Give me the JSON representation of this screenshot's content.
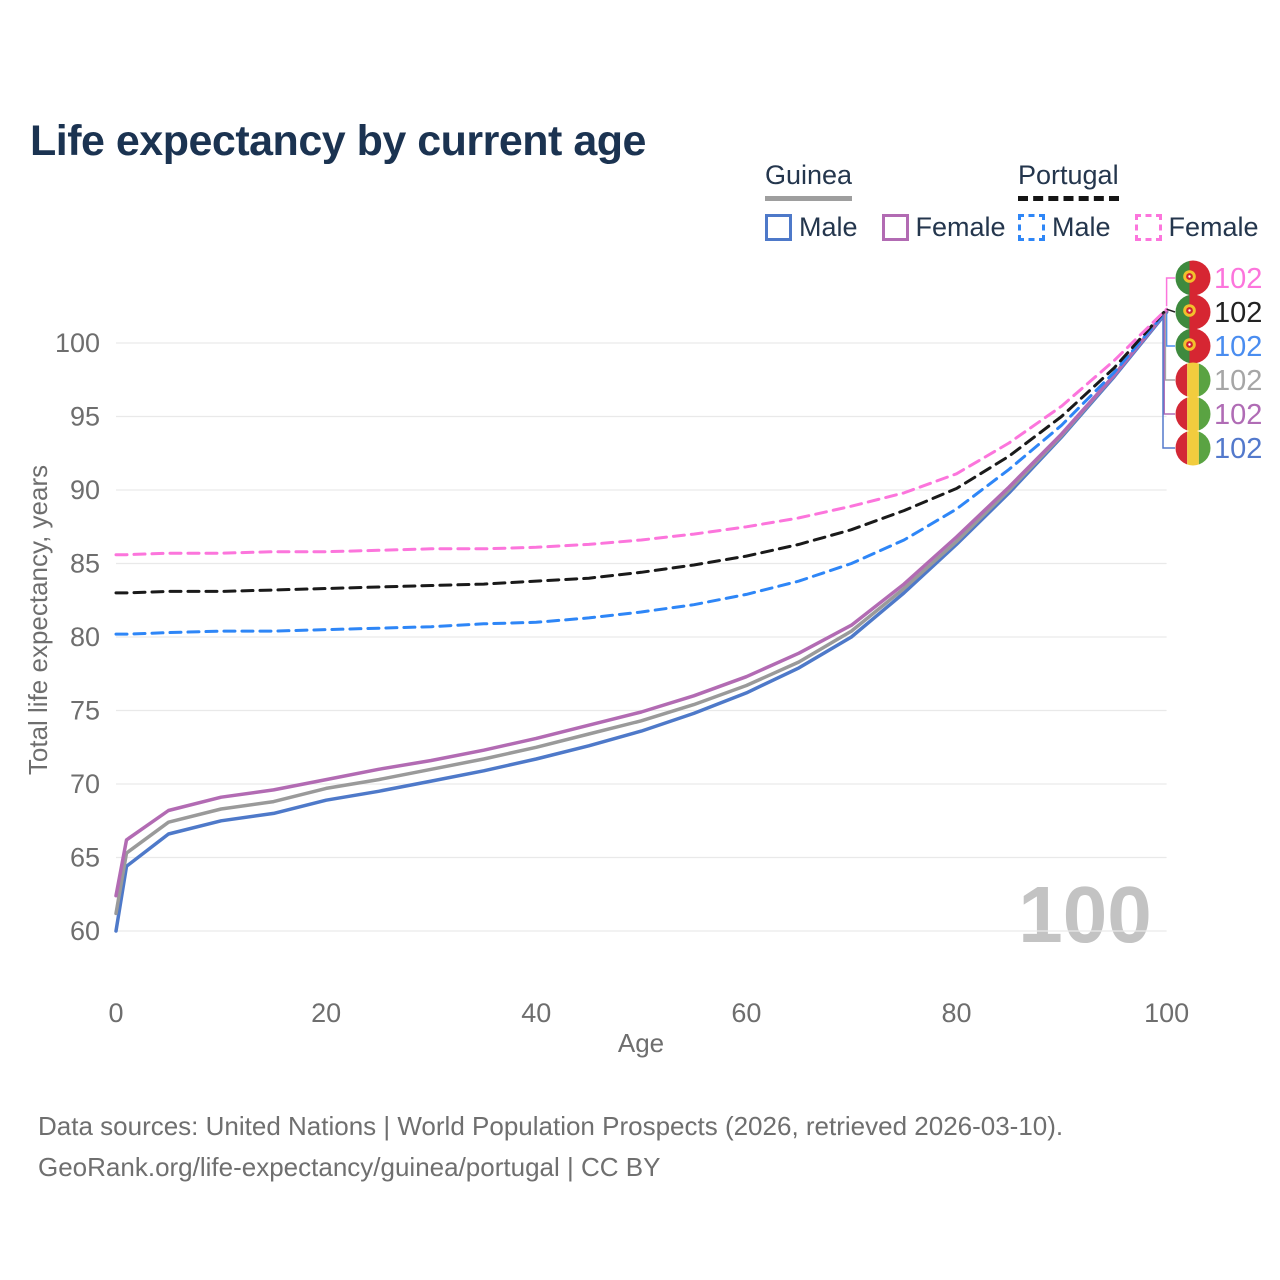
{
  "title": "Life expectancy by current age",
  "legend": {
    "groups": [
      {
        "country": "Guinea",
        "style": "solid",
        "items": [
          {
            "label": "Male",
            "color": "#4e79c9"
          },
          {
            "label": "Female",
            "color": "#b26bb3"
          }
        ]
      },
      {
        "country": "Portugal",
        "style": "dashed",
        "items": [
          {
            "label": "Male",
            "color": "#2e86f7"
          },
          {
            "label": "Female",
            "color": "#fc75dc"
          }
        ]
      }
    ]
  },
  "watermark_age": "100",
  "end_labels": [
    {
      "value": "102",
      "flag": "portugal",
      "color": "#fc75dc",
      "series": "portugal-female"
    },
    {
      "value": "102",
      "flag": "portugal",
      "color": "#222222",
      "series": "portugal-total"
    },
    {
      "value": "102",
      "flag": "portugal",
      "color": "#4a8df0",
      "series": "portugal-male"
    },
    {
      "value": "102",
      "flag": "guinea",
      "color": "#a6a6a6",
      "series": "guinea-total"
    },
    {
      "value": "102",
      "flag": "guinea",
      "color": "#b06cb5",
      "series": "guinea-female"
    },
    {
      "value": "102",
      "flag": "guinea",
      "color": "#5379cc",
      "series": "guinea-male"
    }
  ],
  "flag_colors": {
    "portugal": {
      "green": "#3e8a3e",
      "red": "#d62632",
      "emblem_yellow": "#f2c02c",
      "emblem_red": "#cf2233",
      "emblem_dot": "#ffffff"
    },
    "guinea": {
      "red": "#d32836",
      "yellow": "#f2cc3e",
      "green": "#5aa342"
    }
  },
  "footer": {
    "line1": "Data sources: United Nations | World Population Prospects (2026, retrieved 2026-03-10).",
    "line2": "GeoRank.org/life-expectancy/guinea/portugal | CC BY"
  },
  "chart_data": {
    "type": "line",
    "title": "Life expectancy by current age",
    "xlabel": "Age",
    "ylabel": "Total life expectancy, years",
    "xlim": [
      0,
      100
    ],
    "ylim": [
      57.5,
      103.5
    ],
    "xticks": [
      0,
      20,
      40,
      60,
      80,
      100
    ],
    "yticks": [
      60,
      65,
      70,
      75,
      80,
      85,
      90,
      95,
      100
    ],
    "grid": "horizontal",
    "legend_position": "top-right",
    "x": [
      0,
      1,
      5,
      10,
      15,
      20,
      25,
      30,
      35,
      40,
      45,
      50,
      55,
      60,
      65,
      70,
      75,
      80,
      85,
      90,
      95,
      100
    ],
    "series": [
      {
        "id": "guinea-male",
        "name": "Guinea Male",
        "color": "#4e79c9",
        "dash": "solid",
        "values": [
          60.0,
          64.4,
          66.6,
          67.5,
          68.0,
          68.9,
          69.5,
          70.2,
          70.9,
          71.7,
          72.6,
          73.6,
          74.8,
          76.2,
          77.9,
          80.0,
          83.0,
          86.3,
          89.8,
          93.6,
          97.7,
          102.1
        ]
      },
      {
        "id": "guinea-total",
        "name": "Guinea Total",
        "color": "#9a9a9a",
        "dash": "solid",
        "values": [
          61.2,
          65.3,
          67.4,
          68.3,
          68.8,
          69.7,
          70.3,
          71.0,
          71.7,
          72.5,
          73.4,
          74.3,
          75.4,
          76.7,
          78.3,
          80.4,
          83.3,
          86.5,
          90.0,
          93.7,
          97.8,
          102.2
        ]
      },
      {
        "id": "guinea-female",
        "name": "Guinea Female",
        "color": "#b26bb3",
        "dash": "solid",
        "values": [
          62.4,
          66.2,
          68.2,
          69.1,
          69.6,
          70.3,
          71.0,
          71.6,
          72.3,
          73.1,
          74.0,
          74.9,
          76.0,
          77.3,
          78.9,
          80.8,
          83.6,
          86.8,
          90.2,
          93.8,
          97.8,
          102.2
        ]
      },
      {
        "id": "portugal-male",
        "name": "Portugal Male",
        "color": "#2e86f7",
        "dash": "dashed",
        "values": [
          80.2,
          80.2,
          80.3,
          80.4,
          80.4,
          80.5,
          80.6,
          80.7,
          80.9,
          81.0,
          81.3,
          81.7,
          82.2,
          82.9,
          83.8,
          85.0,
          86.6,
          88.7,
          91.4,
          94.4,
          98.0,
          102.2
        ]
      },
      {
        "id": "portugal-total",
        "name": "Portugal Total",
        "color": "#1a1a1a",
        "dash": "dashed",
        "values": [
          83.0,
          83.0,
          83.1,
          83.1,
          83.2,
          83.3,
          83.4,
          83.5,
          83.6,
          83.8,
          84.0,
          84.4,
          84.9,
          85.5,
          86.3,
          87.3,
          88.6,
          90.1,
          92.3,
          95.0,
          98.3,
          102.3
        ]
      },
      {
        "id": "portugal-female",
        "name": "Portugal Female",
        "color": "#fc75dc",
        "dash": "dashed",
        "values": [
          85.6,
          85.6,
          85.7,
          85.7,
          85.8,
          85.8,
          85.9,
          86.0,
          86.0,
          86.1,
          86.3,
          86.6,
          87.0,
          87.5,
          88.1,
          88.9,
          89.8,
          91.1,
          93.2,
          95.7,
          98.8,
          102.3
        ]
      }
    ]
  }
}
